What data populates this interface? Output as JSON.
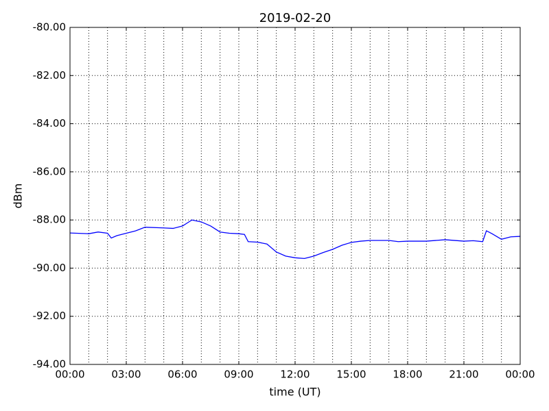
{
  "chart_data": {
    "type": "line",
    "title": "2019-02-20",
    "xlabel": "time (UT)",
    "ylabel": "dBm",
    "color": "#0000ff",
    "grid": true,
    "x": [
      0,
      1,
      1.5,
      2,
      2.2,
      2.5,
      3,
      3.5,
      4,
      5,
      5.5,
      6,
      6.5,
      7,
      7.5,
      8,
      8.5,
      9,
      9.3,
      9.5,
      10,
      10.5,
      11,
      11.5,
      12,
      12.5,
      13,
      13.5,
      14,
      14.5,
      15,
      15.5,
      16,
      17,
      17.5,
      18,
      19,
      20,
      21,
      21.5,
      22,
      22.2,
      22.5,
      23,
      23.5,
      24
    ],
    "values": [
      -88.54,
      -88.57,
      -88.5,
      -88.55,
      -88.75,
      -88.65,
      -88.55,
      -88.45,
      -88.3,
      -88.33,
      -88.35,
      -88.25,
      -88.0,
      -88.08,
      -88.25,
      -88.5,
      -88.55,
      -88.57,
      -88.6,
      -88.9,
      -88.92,
      -89.0,
      -89.33,
      -89.5,
      -89.57,
      -89.6,
      -89.5,
      -89.35,
      -89.22,
      -89.05,
      -88.93,
      -88.88,
      -88.85,
      -88.85,
      -88.9,
      -88.88,
      -88.88,
      -88.82,
      -88.88,
      -88.86,
      -88.9,
      -88.45,
      -88.57,
      -88.8,
      -88.7,
      -88.68
    ],
    "xlim": [
      0,
      24
    ],
    "xticks": [
      {
        "value": 0,
        "label": "00:00"
      },
      {
        "value": 3,
        "label": "03:00"
      },
      {
        "value": 6,
        "label": "06:00"
      },
      {
        "value": 9,
        "label": "09:00"
      },
      {
        "value": 12,
        "label": "12:00"
      },
      {
        "value": 15,
        "label": "15:00"
      },
      {
        "value": 18,
        "label": "18:00"
      },
      {
        "value": 21,
        "label": "21:00"
      },
      {
        "value": 24,
        "label": "00:00"
      }
    ],
    "xminorticks": [
      1,
      2,
      4,
      5,
      7,
      8,
      10,
      11,
      13,
      14,
      16,
      17,
      19,
      20,
      22,
      23
    ],
    "ylim": [
      -94,
      -80
    ],
    "yticks": [
      {
        "value": -94,
        "label": "-94.00"
      },
      {
        "value": -92,
        "label": "-92.00"
      },
      {
        "value": -90,
        "label": "-90.00"
      },
      {
        "value": -88,
        "label": "-88.00"
      },
      {
        "value": -86,
        "label": "-86.00"
      },
      {
        "value": -84,
        "label": "-84.00"
      },
      {
        "value": -82,
        "label": "-82.00"
      },
      {
        "value": -80,
        "label": "-80.00"
      }
    ]
  }
}
